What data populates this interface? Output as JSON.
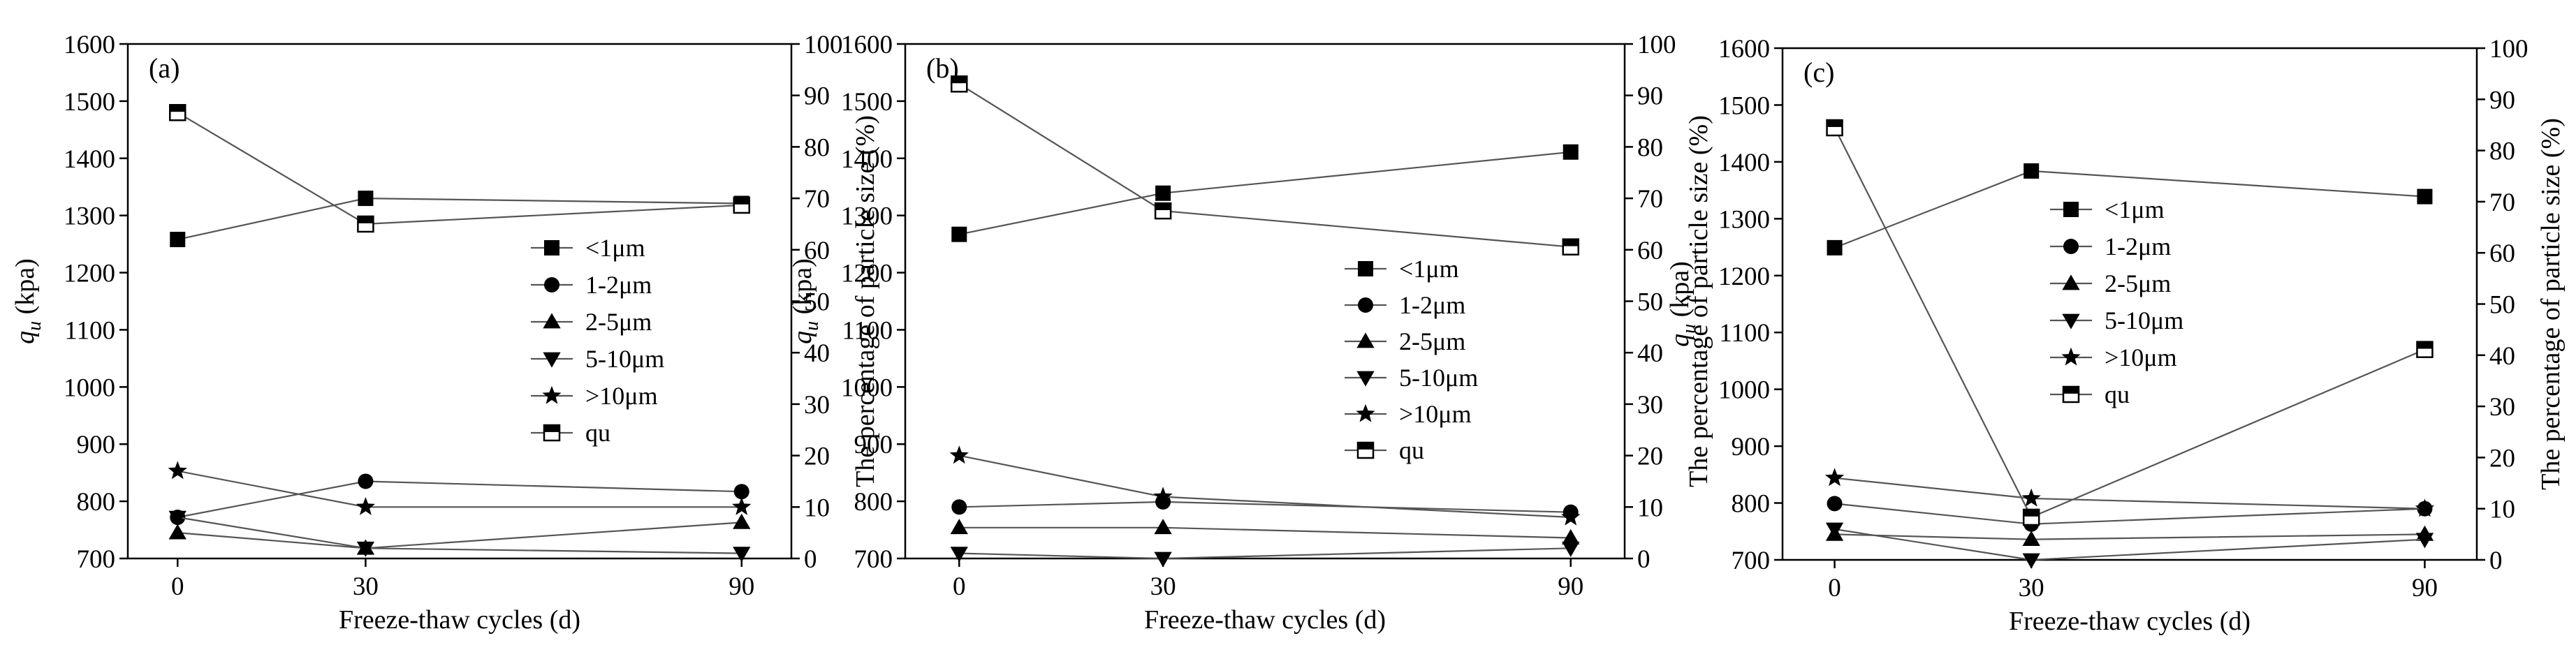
{
  "figure": {
    "marker_color": "#000000",
    "line_color": "#555555",
    "qu_marker_fill": "#ffffff"
  },
  "chart_data": [
    {
      "type": "line",
      "panel_label": "(a)",
      "xlabel": "Freeze-thaw cycles (d)",
      "ylabel_left": "q_u (kpa)",
      "ylabel_right": "The percentage of particle size (%)",
      "categories": [
        "0",
        "30",
        "90"
      ],
      "ylim_left": [
        700,
        1600
      ],
      "ylim_right": [
        0,
        100
      ],
      "left_ticks": [
        "700",
        "800",
        "900",
        "1000",
        "1100",
        "1200",
        "1300",
        "1400",
        "1500",
        "1600"
      ],
      "right_ticks": [
        "0",
        "10",
        "20",
        "30",
        "40",
        "50",
        "60",
        "70",
        "80",
        "90",
        "100"
      ],
      "legend": [
        "<1μm",
        "1-2μm",
        "2-5μm",
        "5-10μm",
        ">10μm",
        "qu"
      ],
      "series": [
        {
          "name": "<1μm",
          "marker": "square",
          "axis": "right",
          "values": [
            62,
            70,
            69
          ]
        },
        {
          "name": "1-2μm",
          "marker": "circle",
          "axis": "right",
          "values": [
            8,
            15,
            13
          ]
        },
        {
          "name": "2-5μm",
          "marker": "triangle-up",
          "axis": "right",
          "values": [
            5,
            2,
            7
          ]
        },
        {
          "name": "5-10μm",
          "marker": "triangle-down",
          "axis": "right",
          "values": [
            8,
            2,
            1
          ]
        },
        {
          "name": ">10μm",
          "marker": "star",
          "axis": "right",
          "values": [
            17,
            10,
            10
          ]
        },
        {
          "name": "qu",
          "marker": "half-square",
          "axis": "left",
          "values": [
            1480,
            1285,
            1318
          ]
        }
      ]
    },
    {
      "type": "line",
      "panel_label": "(b)",
      "xlabel": "Freeze-thaw cycles (d)",
      "ylabel_left": "q_u (kpa)",
      "ylabel_right": "The percentage of particle size (%)",
      "categories": [
        "0",
        "30",
        "90"
      ],
      "ylim_left": [
        700,
        1600
      ],
      "ylim_right": [
        0,
        100
      ],
      "left_ticks": [
        "700",
        "800",
        "900",
        "1000",
        "1100",
        "1200",
        "1300",
        "1400",
        "1500",
        "1600"
      ],
      "right_ticks": [
        "0",
        "10",
        "20",
        "30",
        "40",
        "50",
        "60",
        "70",
        "80",
        "90",
        "100"
      ],
      "legend": [
        "<1μm",
        "1-2μm",
        "2-5μm",
        "5-10μm",
        ">10μm",
        "qu"
      ],
      "series": [
        {
          "name": "<1μm",
          "marker": "square",
          "axis": "right",
          "values": [
            63,
            71,
            79
          ]
        },
        {
          "name": "1-2μm",
          "marker": "circle",
          "axis": "right",
          "values": [
            10,
            11,
            9
          ]
        },
        {
          "name": "2-5μm",
          "marker": "triangle-up",
          "axis": "right",
          "values": [
            6,
            6,
            4
          ]
        },
        {
          "name": "5-10μm",
          "marker": "triangle-down",
          "axis": "right",
          "values": [
            1,
            0,
            2
          ]
        },
        {
          "name": ">10μm",
          "marker": "star",
          "axis": "right",
          "values": [
            20,
            12,
            8
          ]
        },
        {
          "name": "qu",
          "marker": "half-square",
          "axis": "left",
          "values": [
            1530,
            1308,
            1245
          ]
        }
      ]
    },
    {
      "type": "line",
      "panel_label": "(c)",
      "xlabel": "Freeze-thaw cycles (d)",
      "ylabel_left": "q_u (kpa)",
      "ylabel_right": "The percentage of particle size (%)",
      "categories": [
        "0",
        "30",
        "90"
      ],
      "ylim_left": [
        700,
        1600
      ],
      "ylim_right": [
        0,
        100
      ],
      "left_ticks": [
        "700",
        "800",
        "900",
        "1000",
        "1100",
        "1200",
        "1300",
        "1400",
        "1500",
        "1600"
      ],
      "right_ticks": [
        "0",
        "10",
        "20",
        "30",
        "40",
        "50",
        "60",
        "70",
        "80",
        "90",
        "100"
      ],
      "legend": [
        "<1μm",
        "1-2μm",
        "2-5μm",
        "5-10μm",
        ">10μm",
        "qu"
      ],
      "series": [
        {
          "name": "<1μm",
          "marker": "square",
          "axis": "right",
          "values": [
            61,
            76,
            71
          ]
        },
        {
          "name": "1-2μm",
          "marker": "circle",
          "axis": "right",
          "values": [
            11,
            7,
            10
          ]
        },
        {
          "name": "2-5μm",
          "marker": "triangle-up",
          "axis": "right",
          "values": [
            5,
            4,
            5
          ]
        },
        {
          "name": "5-10μm",
          "marker": "triangle-down",
          "axis": "right",
          "values": [
            6,
            0,
            4
          ]
        },
        {
          "name": ">10μm",
          "marker": "star",
          "axis": "right",
          "values": [
            16,
            12,
            10
          ]
        },
        {
          "name": "qu",
          "marker": "half-square",
          "axis": "left",
          "values": [
            1460,
            775,
            1070
          ]
        }
      ]
    }
  ]
}
